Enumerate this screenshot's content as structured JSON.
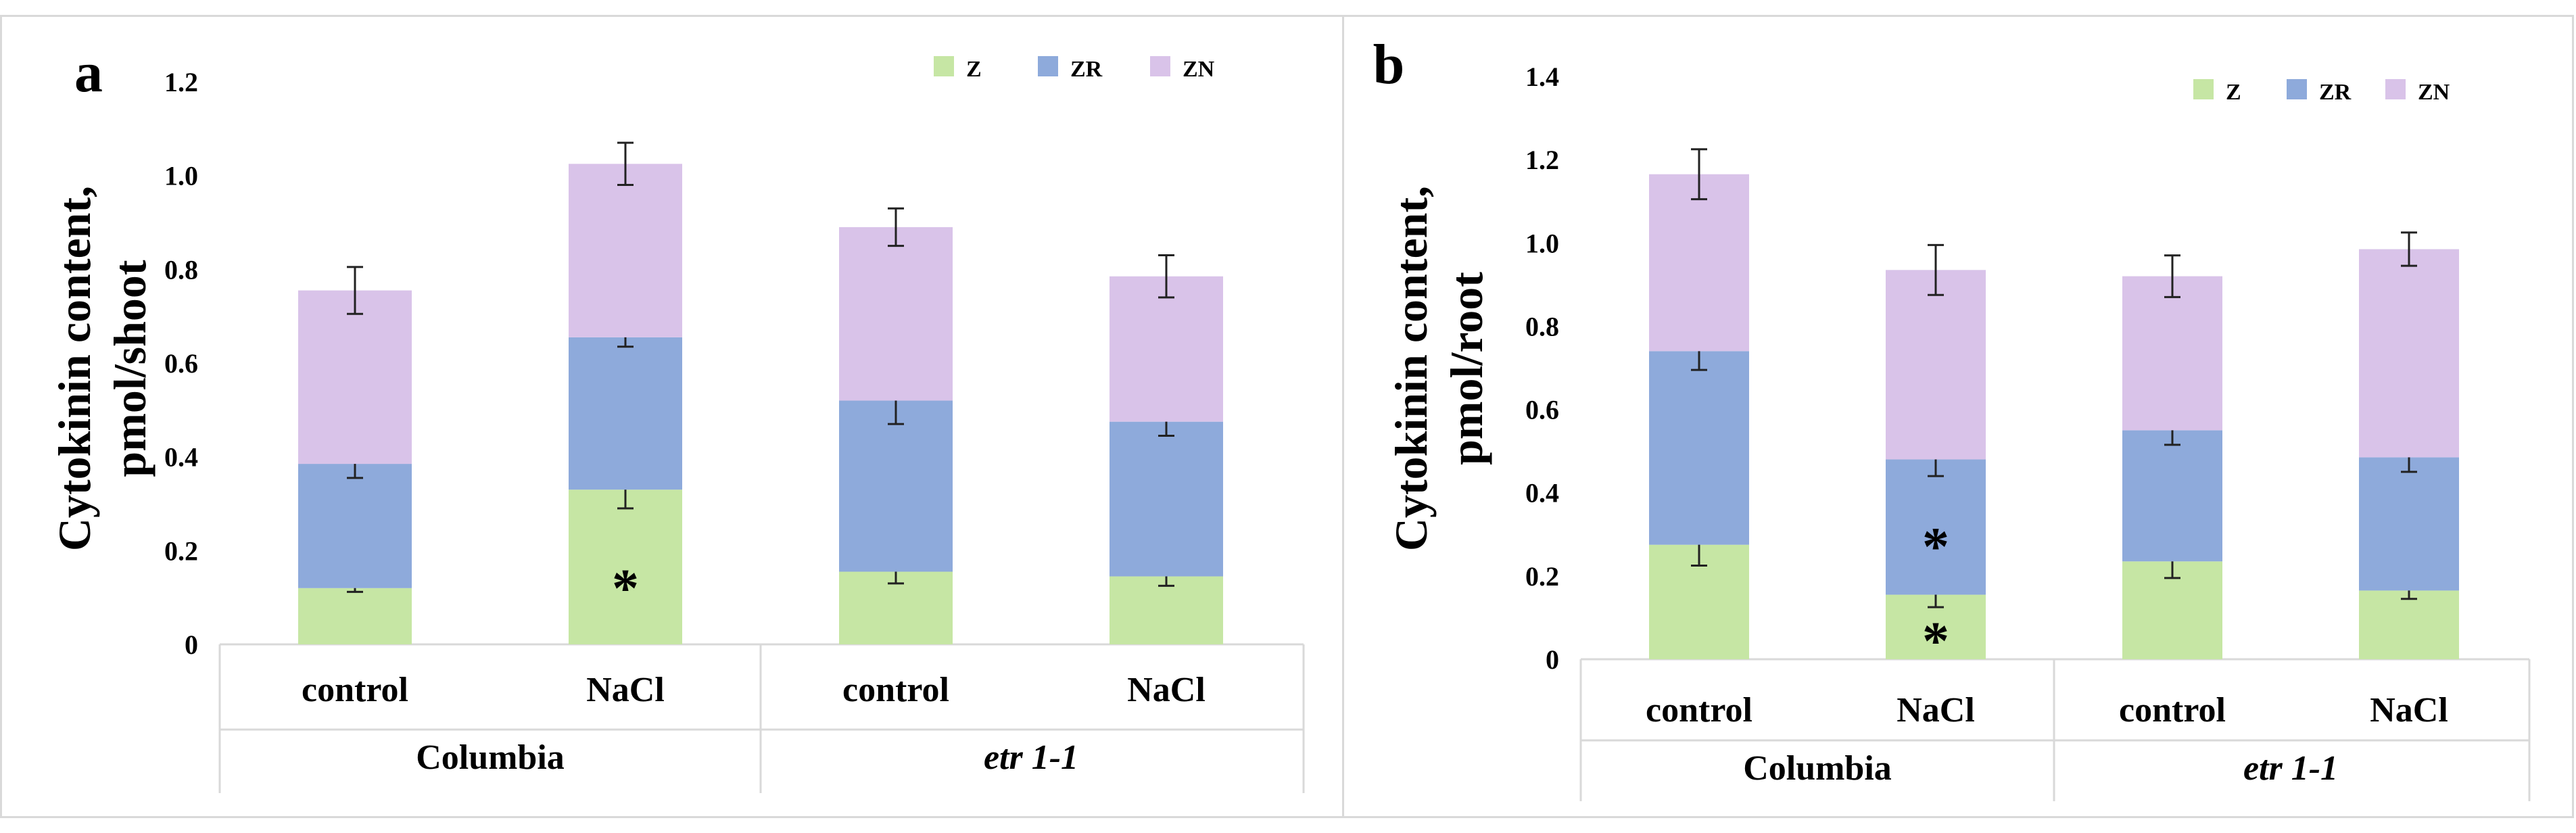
{
  "colors": {
    "Z": "#c6e6a4",
    "ZR": "#8eaadb",
    "ZN": "#d9c3e9"
  },
  "chart_data": [
    {
      "type": "bar",
      "panel_letter": "a",
      "ylabel_lines": [
        "Cytokinin content,",
        "pmol/shoot"
      ],
      "ylim": [
        0,
        1.2
      ],
      "yticks": [
        "0",
        "0.2",
        "0.4",
        "0.6",
        "0.8",
        "1.0",
        "1.2"
      ],
      "ytick_values": [
        0,
        0.2,
        0.4,
        0.6,
        0.8,
        1.0,
        1.2
      ],
      "grid": false,
      "legend_position": "top-right",
      "categories": [
        "control",
        "NaCl",
        "control",
        "NaCl"
      ],
      "groups": [
        {
          "label": "Columbia",
          "italic": false
        },
        {
          "label": "etr 1-1",
          "italic": true
        }
      ],
      "series": [
        {
          "name": "Z",
          "values": [
            0.12,
            0.33,
            0.155,
            0.145
          ],
          "errors": [
            0.008,
            0.04,
            0.025,
            0.02
          ]
        },
        {
          "name": "ZR",
          "values": [
            0.265,
            0.325,
            0.365,
            0.33
          ],
          "errors": [
            0.03,
            0.02,
            0.05,
            0.03
          ]
        },
        {
          "name": "ZN",
          "values": [
            0.37,
            0.37,
            0.37,
            0.31
          ],
          "errors": [
            0.05,
            0.045,
            0.04,
            0.045
          ]
        }
      ],
      "annotations": [
        {
          "text": "*",
          "category": 1,
          "series": "Z"
        }
      ]
    },
    {
      "type": "bar",
      "panel_letter": "b",
      "ylabel_lines": [
        "Cytokinin content,",
        "pmol/root"
      ],
      "ylim": [
        0,
        1.4
      ],
      "yticks": [
        "0",
        "0.2",
        "0.4",
        "0.6",
        "0.8",
        "1.0",
        "1.2",
        "1.4"
      ],
      "ytick_values": [
        0,
        0.2,
        0.4,
        0.6,
        0.8,
        1.0,
        1.2,
        1.4
      ],
      "grid": false,
      "legend_position": "top-right",
      "categories": [
        "control",
        "NaCl",
        "control",
        "NaCl"
      ],
      "groups": [
        {
          "label": "Columbia",
          "italic": false
        },
        {
          "label": "etr 1-1",
          "italic": true
        }
      ],
      "series": [
        {
          "name": "Z",
          "values": [
            0.275,
            0.155,
            0.235,
            0.165
          ],
          "errors": [
            0.05,
            0.03,
            0.04,
            0.02
          ]
        },
        {
          "name": "ZR",
          "values": [
            0.465,
            0.325,
            0.315,
            0.32
          ],
          "errors": [
            0.045,
            0.04,
            0.035,
            0.035
          ]
        },
        {
          "name": "ZN",
          "values": [
            0.425,
            0.455,
            0.37,
            0.5
          ],
          "errors": [
            0.06,
            0.06,
            0.05,
            0.04
          ]
        }
      ],
      "annotations": [
        {
          "text": "*",
          "category": 1,
          "series": "Z"
        },
        {
          "text": "*",
          "category": 1,
          "series": "ZR"
        }
      ]
    }
  ]
}
